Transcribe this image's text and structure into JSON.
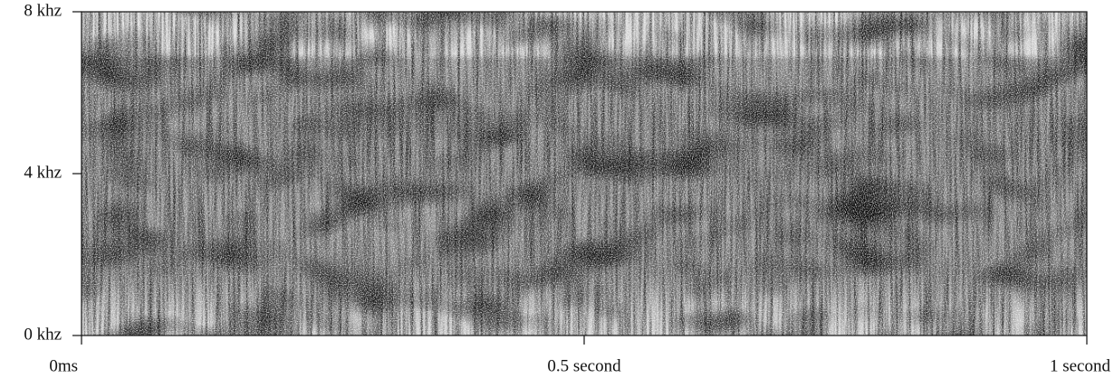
{
  "chart_data": {
    "type": "spectrogram",
    "xlim": [
      0,
      1
    ],
    "xticks": [
      {
        "value": 0,
        "label": "0ms"
      },
      {
        "value": 0.5,
        "label": "0.5 second"
      },
      {
        "value": 1,
        "label": "1 second"
      }
    ],
    "ylim": [
      0,
      8
    ],
    "yticks": [
      {
        "value": 0,
        "label": "0 khz"
      },
      {
        "value": 4,
        "label": "4 khz"
      },
      {
        "value": 8,
        "label": "8 khz"
      }
    ]
  }
}
